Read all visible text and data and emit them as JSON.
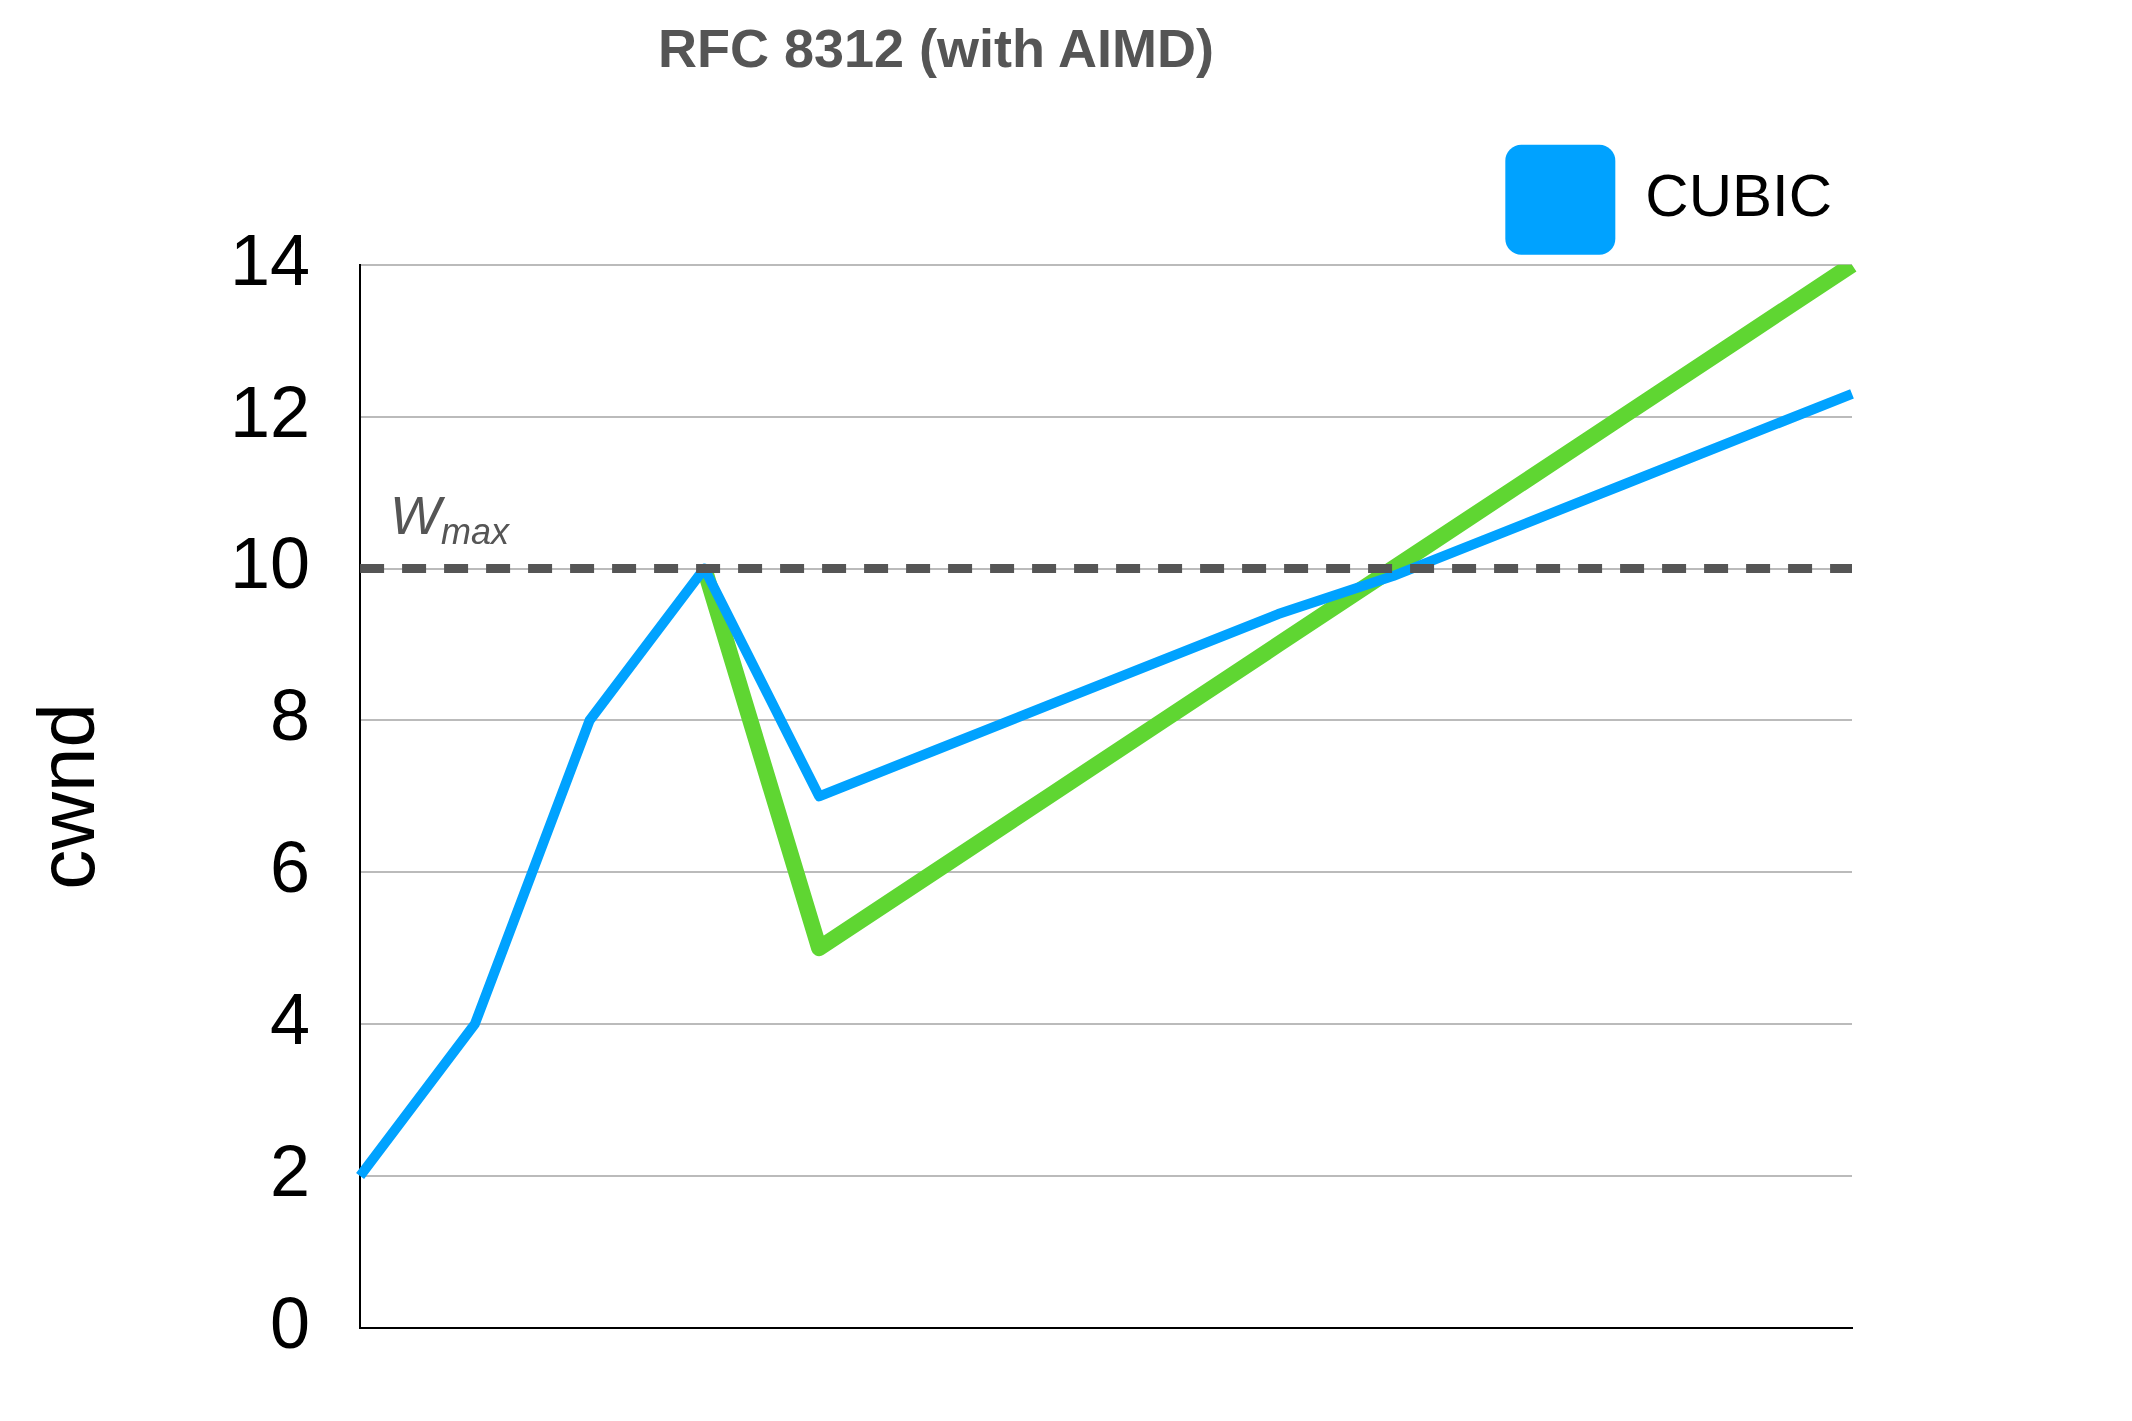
{
  "chart_data": {
    "type": "line",
    "title": "RFC 8312 (with AIMD)",
    "ylabel": "cwnd",
    "categories": [
      null,
      null,
      null,
      null,
      null,
      null,
      null,
      null,
      null,
      null,
      null,
      null,
      null,
      null
    ],
    "series": [
      {
        "color": "#5fd632",
        "values": [
          null,
          null,
          null,
          10,
          5,
          6,
          7,
          8,
          9,
          10,
          11,
          12,
          13,
          14
        ]
      },
      {
        "name": "CUBIC",
        "color": "#00a2ff",
        "values": [
          2,
          4,
          8,
          10,
          7,
          7.6,
          8.2,
          8.8,
          9.4,
          9.9,
          10.5,
          11.1,
          11.7,
          12.3
        ]
      }
    ],
    "ylim": [
      0,
      14
    ],
    "yticks": [
      0,
      2,
      4,
      6,
      8,
      10,
      12,
      14
    ],
    "grid": "y",
    "legend": "top right",
    "marker": "none",
    "line_style": "solid",
    "tick_labels": "y",
    "ref_lines": [
      {
        "axis": "y",
        "value": 10,
        "label": "W$_{max}$",
        "color": "#555555",
        "line_style": "dashed"
      }
    ]
  }
}
